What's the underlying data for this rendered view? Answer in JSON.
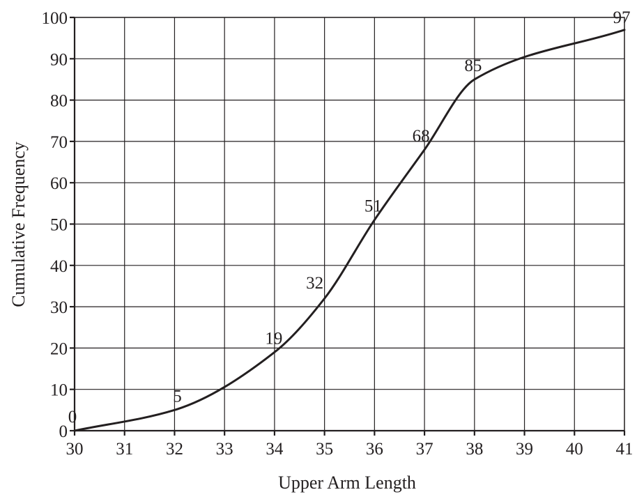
{
  "chart_data": {
    "type": "line",
    "title": "",
    "xlabel": "Upper Arm Length",
    "ylabel": "Cumulative Frequency",
    "xlim": [
      30,
      41
    ],
    "ylim": [
      0,
      100
    ],
    "x_ticks": [
      30,
      31,
      32,
      33,
      34,
      35,
      36,
      37,
      38,
      39,
      40,
      41
    ],
    "y_ticks": [
      0,
      10,
      20,
      30,
      40,
      50,
      60,
      70,
      80,
      90,
      100
    ],
    "grid": true,
    "series": [
      {
        "x": [
          30,
          32,
          34,
          35,
          36,
          37,
          38,
          41
        ],
        "values": [
          0,
          5,
          19,
          32,
          51,
          68,
          85,
          97
        ]
      }
    ],
    "point_labels": [
      "0",
      "5",
      "19",
      "32",
      "51",
      "68",
      "85",
      "97"
    ],
    "colors": {
      "line": "#231f20",
      "grid": "#231f20",
      "background": "#ffffff"
    }
  }
}
